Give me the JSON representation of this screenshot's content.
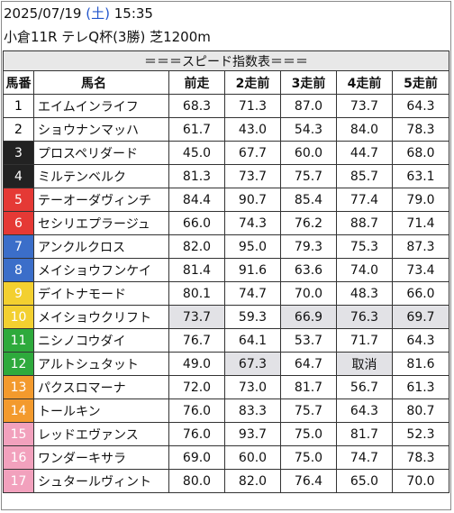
{
  "header": {
    "date": "2025/07/19",
    "weekday": "(土)",
    "time": "15:35",
    "race": "小倉11R テレQ杯(3勝) 芝1200m"
  },
  "table": {
    "title": "＝＝＝スピード指数表＝＝＝",
    "columns": [
      "馬番",
      "馬名",
      "前走",
      "2走前",
      "3走前",
      "4走前",
      "5走前"
    ],
    "rows": [
      {
        "no": "1",
        "name": "エイムインライフ",
        "v": [
          "68.3",
          "71.3",
          "87.0",
          "73.7",
          "64.3"
        ],
        "bg": "#ffffff",
        "fg": "#000000",
        "hl": [
          false,
          false,
          false,
          false,
          false
        ]
      },
      {
        "no": "2",
        "name": "ショウナンマッハ",
        "v": [
          "61.7",
          "43.0",
          "54.3",
          "84.0",
          "78.3"
        ],
        "bg": "#ffffff",
        "fg": "#000000",
        "hl": [
          false,
          false,
          false,
          false,
          false
        ]
      },
      {
        "no": "3",
        "name": "プロスペリダード",
        "v": [
          "45.0",
          "67.7",
          "60.0",
          "44.7",
          "68.0"
        ],
        "bg": "#222222",
        "fg": "#ffffff",
        "hl": [
          false,
          false,
          false,
          false,
          false
        ]
      },
      {
        "no": "4",
        "name": "ミルテンベルク",
        "v": [
          "81.3",
          "73.7",
          "75.7",
          "85.7",
          "63.1"
        ],
        "bg": "#222222",
        "fg": "#ffffff",
        "hl": [
          false,
          false,
          false,
          false,
          false
        ]
      },
      {
        "no": "5",
        "name": "テーオーダヴィンチ",
        "v": [
          "84.4",
          "90.7",
          "85.4",
          "77.4",
          "79.0"
        ],
        "bg": "#e53935",
        "fg": "#ffffff",
        "hl": [
          false,
          false,
          false,
          false,
          false
        ]
      },
      {
        "no": "6",
        "name": "セシリエプラージュ",
        "v": [
          "66.0",
          "74.3",
          "76.2",
          "88.7",
          "71.4"
        ],
        "bg": "#e53935",
        "fg": "#ffffff",
        "hl": [
          false,
          false,
          false,
          false,
          false
        ]
      },
      {
        "no": "7",
        "name": "アンクルクロス",
        "v": [
          "82.0",
          "95.0",
          "79.3",
          "75.3",
          "87.3"
        ],
        "bg": "#3b6ec9",
        "fg": "#ffffff",
        "hl": [
          false,
          false,
          false,
          false,
          false
        ]
      },
      {
        "no": "8",
        "name": "メイショウフンケイ",
        "v": [
          "81.4",
          "91.6",
          "63.6",
          "74.0",
          "73.4"
        ],
        "bg": "#3b6ec9",
        "fg": "#ffffff",
        "hl": [
          false,
          false,
          false,
          false,
          false
        ]
      },
      {
        "no": "9",
        "name": "デイトナモード",
        "v": [
          "80.1",
          "74.7",
          "70.0",
          "48.3",
          "66.0"
        ],
        "bg": "#f3d030",
        "fg": "#ffffff",
        "hl": [
          false,
          false,
          false,
          false,
          false
        ]
      },
      {
        "no": "10",
        "name": "メイショウクリフト",
        "v": [
          "73.7",
          "59.3",
          "66.9",
          "76.3",
          "69.7"
        ],
        "bg": "#f3d030",
        "fg": "#ffffff",
        "hl": [
          true,
          false,
          true,
          true,
          true
        ]
      },
      {
        "no": "11",
        "name": "ニシノコウダイ",
        "v": [
          "76.7",
          "64.1",
          "53.7",
          "71.7",
          "64.3"
        ],
        "bg": "#2eaa3c",
        "fg": "#ffffff",
        "hl": [
          false,
          false,
          false,
          false,
          false
        ]
      },
      {
        "no": "12",
        "name": "アルトシュタット",
        "v": [
          "49.0",
          "67.3",
          "64.7",
          "取消",
          "81.6"
        ],
        "bg": "#2eaa3c",
        "fg": "#ffffff",
        "hl": [
          false,
          true,
          false,
          true,
          false
        ]
      },
      {
        "no": "13",
        "name": "パクスロマーナ",
        "v": [
          "72.0",
          "73.0",
          "81.7",
          "56.7",
          "61.3"
        ],
        "bg": "#f39a2d",
        "fg": "#ffffff",
        "hl": [
          false,
          false,
          false,
          false,
          false
        ]
      },
      {
        "no": "14",
        "name": "トールキン",
        "v": [
          "76.0",
          "83.3",
          "75.7",
          "64.3",
          "80.7"
        ],
        "bg": "#f39a2d",
        "fg": "#ffffff",
        "hl": [
          false,
          false,
          false,
          false,
          false
        ]
      },
      {
        "no": "15",
        "name": "レッドエヴァンス",
        "v": [
          "76.0",
          "93.7",
          "75.0",
          "81.7",
          "52.3"
        ],
        "bg": "#f2a1bd",
        "fg": "#ffffff",
        "hl": [
          false,
          false,
          false,
          false,
          false
        ]
      },
      {
        "no": "16",
        "name": "ワンダーキサラ",
        "v": [
          "69.0",
          "60.0",
          "75.0",
          "74.7",
          "78.3"
        ],
        "bg": "#f2a1bd",
        "fg": "#ffffff",
        "hl": [
          false,
          false,
          false,
          false,
          false
        ]
      },
      {
        "no": "17",
        "name": "シュタールヴィント",
        "v": [
          "80.0",
          "82.0",
          "76.4",
          "65.0",
          "70.0"
        ],
        "bg": "#f2a1bd",
        "fg": "#ffffff",
        "hl": [
          false,
          false,
          false,
          false,
          false
        ]
      }
    ]
  }
}
